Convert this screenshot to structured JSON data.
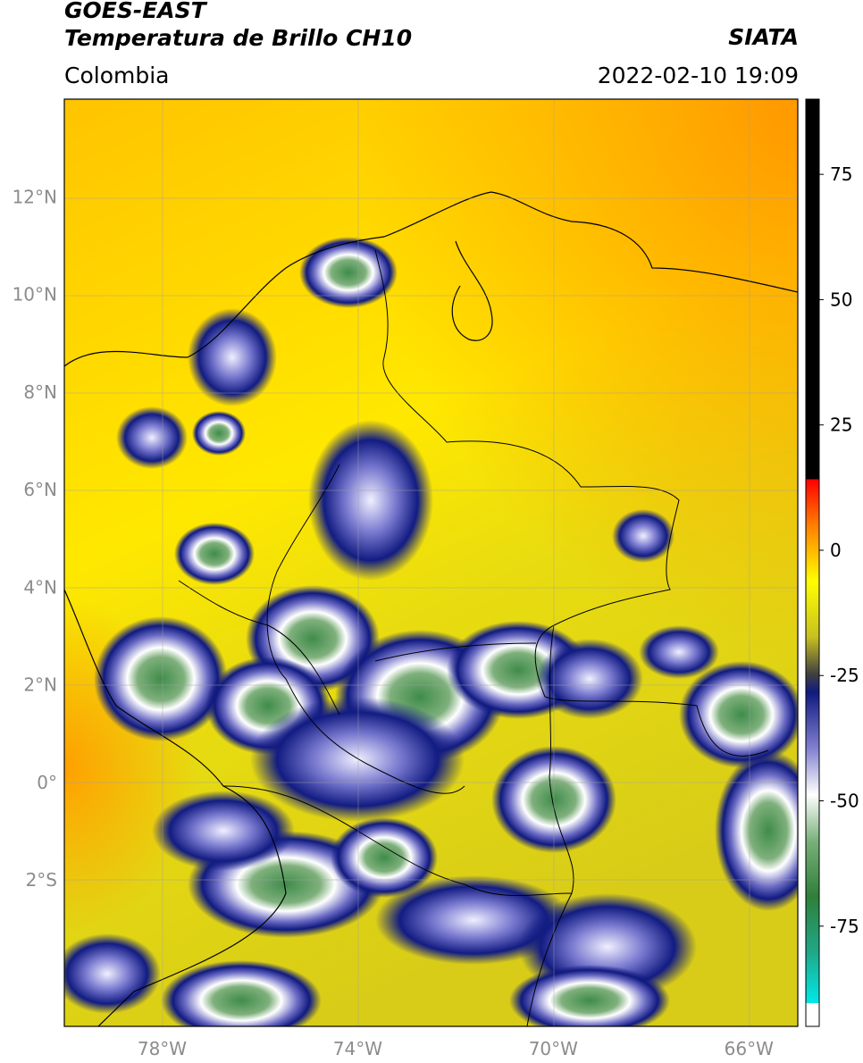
{
  "header": {
    "satellite": "GOES-EAST",
    "product": "Temperatura de Brillo CH10",
    "brand": "SIATA",
    "region": "Colombia",
    "datetime": "2022-02-10 19:09"
  },
  "map": {
    "lon_range": [
      -80,
      -65
    ],
    "lat_range": [
      -5,
      14
    ],
    "lat_ticks": [
      "12°N",
      "10°N",
      "8°N",
      "6°N",
      "4°N",
      "2°N",
      "0°",
      "2°S"
    ],
    "lon_ticks": [
      "78°W",
      "74°W",
      "70°W",
      "66°W"
    ],
    "lat_tick_values": [
      12,
      10,
      8,
      6,
      4,
      2,
      0,
      -2
    ],
    "lon_tick_values": [
      -78,
      -74,
      -70,
      -66
    ]
  },
  "colorbar": {
    "range": [
      -95,
      90
    ],
    "tick_values": [
      75,
      50,
      25,
      0,
      -25,
      -50,
      -75
    ],
    "tick_labels": [
      "75",
      "50",
      "25",
      "0",
      "-25",
      "-50",
      "-75"
    ]
  }
}
